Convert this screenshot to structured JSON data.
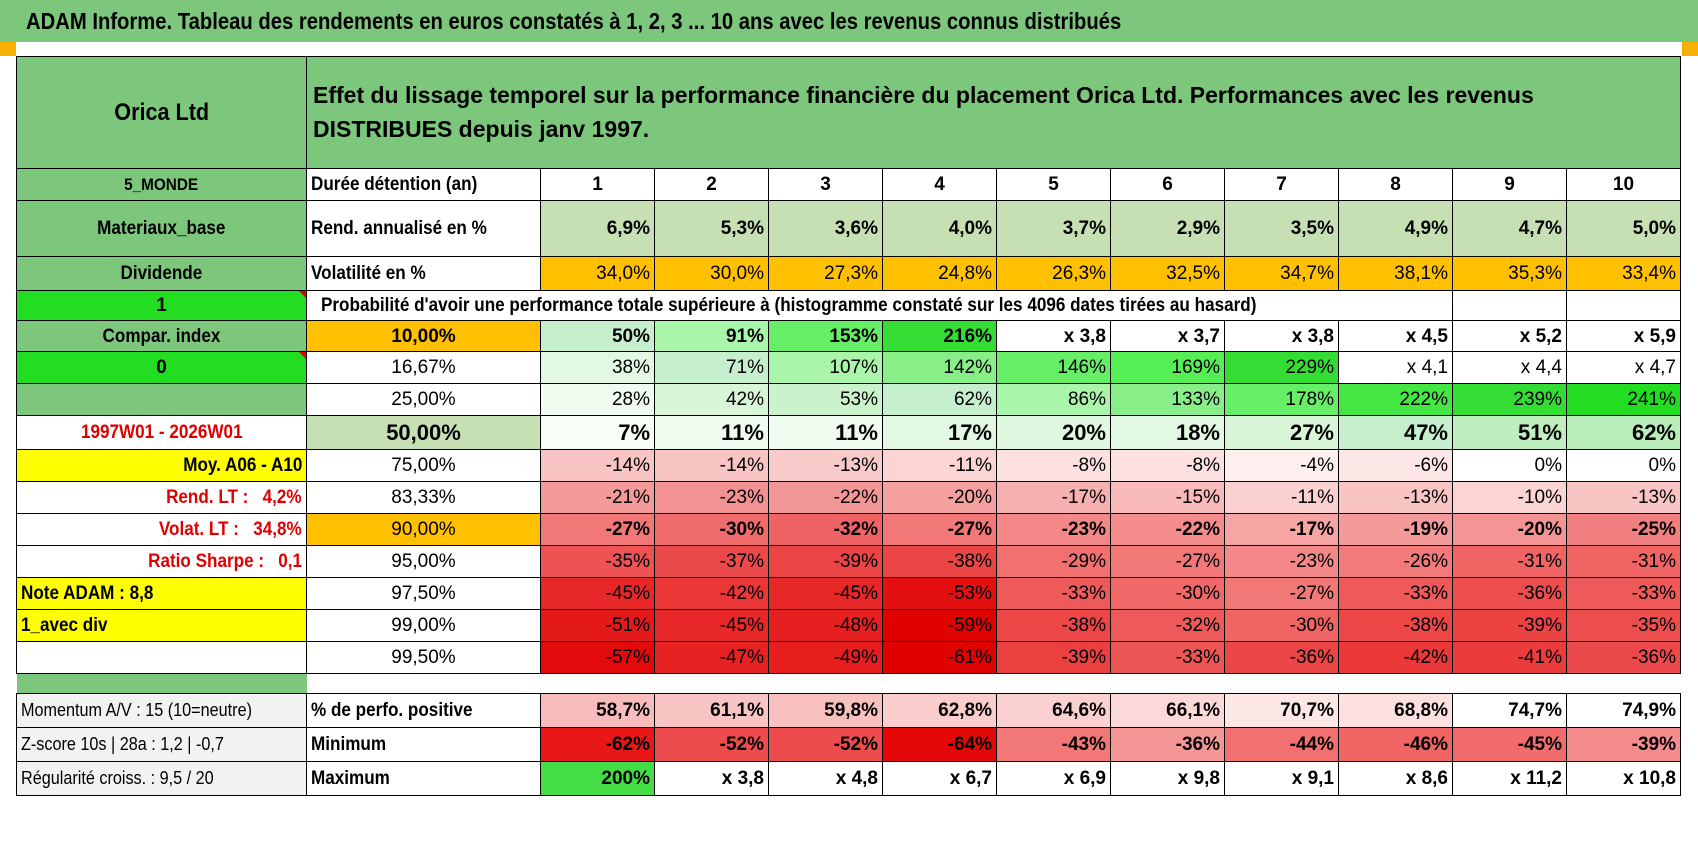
{
  "header": {
    "title": "ADAM Informe. Tableau des rendements en euros constatés à 1, 2, 3 ... 10 ans avec les revenus connus distribués"
  },
  "info": {
    "company": "Orica Ltd",
    "description": "Effet du lissage temporel sur la performance financière du placement Orica Ltd. Performances avec les revenus DISTRIBUES depuis janv 1997.",
    "region": "5_MONDE",
    "sector": "Materiaux_base",
    "income_type": "Dividende",
    "flag1": "1",
    "compar_index": "Compar. index",
    "flag0": "0",
    "period": "1997W01 - 2026W01",
    "moy": "Moy. A06 - A10",
    "rend_lt_label": "Rend. LT :",
    "rend_lt_value": "4,2%",
    "volat_lt_label": "Volat. LT :",
    "volat_lt_value": "34,8%",
    "sharpe_label": "Ratio Sharpe :",
    "sharpe_value": "0,1",
    "note": "Note ADAM : 8,8",
    "avec_div": "1_avec div",
    "momentum": "Momentum A/V : 15 (10=neutre)",
    "zscore": "Z-score 10s | 28a : 1,2 | -0,7",
    "regularite": "Régularité croiss. : 9,5 / 20"
  },
  "years_header": {
    "label": "Durée détention (an)",
    "years": [
      "1",
      "2",
      "3",
      "4",
      "5",
      "6",
      "7",
      "8",
      "9",
      "10"
    ]
  },
  "rend": {
    "label": "Rend. annualisé en %",
    "values": [
      "6,9%",
      "5,3%",
      "3,6%",
      "4,0%",
      "3,7%",
      "2,9%",
      "3,5%",
      "4,9%",
      "4,7%",
      "5,0%"
    ]
  },
  "vol": {
    "label": "Volatilité en %",
    "values": [
      "34,0%",
      "30,0%",
      "27,3%",
      "24,8%",
      "26,3%",
      "32,5%",
      "34,7%",
      "38,1%",
      "35,3%",
      "33,4%"
    ]
  },
  "prob_title": "Probabilité d'avoir une performance totale supérieure à (histogramme constaté sur les 4096 dates tirées au hasard)",
  "prob_rows": [
    {
      "pct": "10,00%",
      "values": [
        "50%",
        "91%",
        "153%",
        "216%",
        "x 3,8",
        "x 3,7",
        "x 3,8",
        "x 4,5",
        "x 5,2",
        "x 5,9"
      ]
    },
    {
      "pct": "16,67%",
      "values": [
        "38%",
        "71%",
        "107%",
        "142%",
        "146%",
        "169%",
        "229%",
        "x 4,1",
        "x 4,4",
        "x 4,7"
      ]
    },
    {
      "pct": "25,00%",
      "values": [
        "28%",
        "42%",
        "53%",
        "62%",
        "86%",
        "133%",
        "178%",
        "222%",
        "239%",
        "241%"
      ]
    },
    {
      "pct": "50,00%",
      "values": [
        "7%",
        "11%",
        "11%",
        "17%",
        "20%",
        "18%",
        "27%",
        "47%",
        "51%",
        "62%"
      ]
    },
    {
      "pct": "75,00%",
      "values": [
        "-14%",
        "-14%",
        "-13%",
        "-11%",
        "-8%",
        "-8%",
        "-4%",
        "-6%",
        "0%",
        "0%"
      ]
    },
    {
      "pct": "83,33%",
      "values": [
        "-21%",
        "-23%",
        "-22%",
        "-20%",
        "-17%",
        "-15%",
        "-11%",
        "-13%",
        "-10%",
        "-13%"
      ]
    },
    {
      "pct": "90,00%",
      "values": [
        "-27%",
        "-30%",
        "-32%",
        "-27%",
        "-23%",
        "-22%",
        "-17%",
        "-19%",
        "-20%",
        "-25%"
      ]
    },
    {
      "pct": "95,00%",
      "values": [
        "-35%",
        "-37%",
        "-39%",
        "-38%",
        "-29%",
        "-27%",
        "-23%",
        "-26%",
        "-31%",
        "-31%"
      ]
    },
    {
      "pct": "97,50%",
      "values": [
        "-45%",
        "-42%",
        "-45%",
        "-53%",
        "-33%",
        "-30%",
        "-27%",
        "-33%",
        "-36%",
        "-33%"
      ]
    },
    {
      "pct": "99,00%",
      "values": [
        "-51%",
        "-45%",
        "-48%",
        "-59%",
        "-38%",
        "-32%",
        "-30%",
        "-38%",
        "-39%",
        "-35%"
      ]
    },
    {
      "pct": "99,50%",
      "values": [
        "-57%",
        "-47%",
        "-49%",
        "-61%",
        "-39%",
        "-33%",
        "-36%",
        "-42%",
        "-41%",
        "-36%"
      ]
    }
  ],
  "stats": [
    {
      "label": "% de perfo. positive",
      "values": [
        "58,7%",
        "61,1%",
        "59,8%",
        "62,8%",
        "64,6%",
        "66,1%",
        "70,7%",
        "68,8%",
        "74,7%",
        "74,9%"
      ]
    },
    {
      "label": "Minimum",
      "values": [
        "-62%",
        "-52%",
        "-52%",
        "-64%",
        "-43%",
        "-36%",
        "-44%",
        "-46%",
        "-45%",
        "-39%"
      ]
    },
    {
      "label": "Maximum",
      "values": [
        "200%",
        "x 3,8",
        "x 4,8",
        "x 6,7",
        "x 6,9",
        "x 9,8",
        "x 9,1",
        "x 8,6",
        "x 11,2",
        "x 10,8"
      ]
    }
  ],
  "colors": {
    "banner_green": "#7dc77d",
    "bright_green": "#22dd22",
    "yellow": "#ffff00",
    "orange": "#ffc000",
    "rend_bg": "#c6e0b4",
    "red_text": "#e00000",
    "prob_row_colors": [
      [
        "#c6efce",
        "#a9f5a9",
        "#66ee66",
        "#33dd33",
        "#ffffff",
        "#ffffff",
        "#ffffff",
        "#ffffff",
        "#ffffff",
        "#ffffff"
      ],
      [
        "#e2f8e2",
        "#c6efce",
        "#a9f5a9",
        "#88ee88",
        "#66ee66",
        "#55ee55",
        "#33dd33",
        "#ffffff",
        "#ffffff",
        "#ffffff"
      ],
      [
        "#eefbee",
        "#d8f5d8",
        "#cbf3cb",
        "#c6efce",
        "#a9f5a9",
        "#88ee88",
        "#66ee66",
        "#44e644",
        "#33dd33",
        "#22dd22"
      ],
      [
        "#f7fdf7",
        "#eefbee",
        "#eefbee",
        "#e2f8e2",
        "#e0f7e0",
        "#e2f8e2",
        "#d8f5d8",
        "#c6efce",
        "#bfeebf",
        "#b8ecb8"
      ],
      [
        "#f8c4c4",
        "#f8c4c4",
        "#f9caca",
        "#fbd4d4",
        "#fde0e0",
        "#fde0e0",
        "#fff0f0",
        "#fde6e6",
        "#ffffff",
        "#ffffff"
      ],
      [
        "#f49a9a",
        "#f39292",
        "#f39696",
        "#f4a0a0",
        "#f6b0b0",
        "#f8baba",
        "#fbd0d0",
        "#f9c4c4",
        "#fbd4d4",
        "#f9c4c4"
      ],
      [
        "#f27878",
        "#f06c6c",
        "#ee6464",
        "#f27878",
        "#f48888",
        "#f48c8c",
        "#f6a4a4",
        "#f59a9a",
        "#f59494",
        "#f38080"
      ],
      [
        "#ee5252",
        "#ec4a4a",
        "#ea4444",
        "#ea4646",
        "#f27070",
        "#f27878",
        "#f48888",
        "#f27a7a",
        "#f06464",
        "#f06464"
      ],
      [
        "#e82828",
        "#ea3636",
        "#e82828",
        "#e41010",
        "#ee5a5a",
        "#f06868",
        "#f27878",
        "#ee5a5a",
        "#ec4e4e",
        "#ee5a5a"
      ],
      [
        "#e41a1a",
        "#e82828",
        "#e62020",
        "#e00000",
        "#ec4646",
        "#ee5a5a",
        "#f06464",
        "#ec4646",
        "#ec4242",
        "#ec4e4e"
      ],
      [
        "#e20a0a",
        "#e62222",
        "#e61e1e",
        "#e00000",
        "#ea4040",
        "#ee5656",
        "#ea4646",
        "#ea3838",
        "#ea3c3c",
        "#ec4a4a"
      ]
    ],
    "stat_colors": [
      [
        "#f8bcbc",
        "#f9c4c4",
        "#f9c0c0",
        "#fbcccc",
        "#fbd0d0",
        "#fcd8d8",
        "#fde6e6",
        "#fde0e0",
        "#ffffff",
        "#ffffff"
      ],
      [
        "#e81818",
        "#ee4c4c",
        "#ee4c4c",
        "#e40808",
        "#f27878",
        "#f59696",
        "#f27070",
        "#f06464",
        "#f26c6c",
        "#f48c8c"
      ],
      [
        "#44dd44",
        "#ffffff",
        "#ffffff",
        "#ffffff",
        "#ffffff",
        "#ffffff",
        "#ffffff",
        "#ffffff",
        "#ffffff",
        "#ffffff"
      ]
    ]
  }
}
